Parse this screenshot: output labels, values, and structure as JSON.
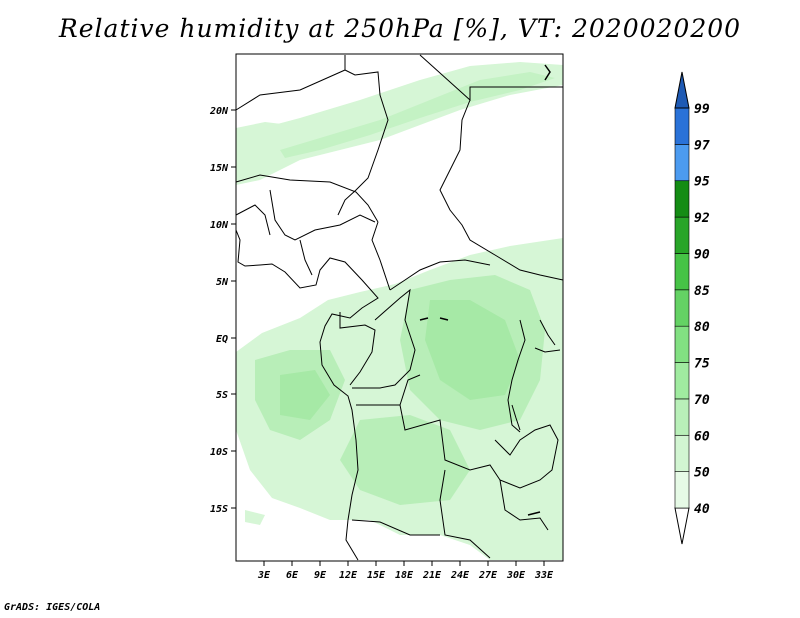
{
  "title": "Relative humidity at 250hPa [%], VT: 2020020200",
  "footer": "GrADS: IGES/COLA",
  "map": {
    "lon_range": [
      0,
      36
    ],
    "lat_range": [
      -20,
      25
    ],
    "lon_ticks": [
      "3E",
      "6E",
      "9E",
      "12E",
      "15E",
      "18E",
      "21E",
      "24E",
      "27E",
      "30E",
      "33E"
    ],
    "lat_ticks": [
      "20N",
      "15N",
      "10N",
      "5N",
      "EQ",
      "5S",
      "10S",
      "15S"
    ]
  },
  "colorbar": {
    "levels": [
      "40",
      "50",
      "60",
      "70",
      "75",
      "80",
      "85",
      "90",
      "92",
      "95",
      "97",
      "99"
    ],
    "colors": [
      "#ffffff",
      "#e6fae6",
      "#d2f5d2",
      "#b9f0b9",
      "#a0eba0",
      "#82e082",
      "#64d264",
      "#46c346",
      "#28a528",
      "#148c14",
      "#4c9bf0",
      "#2a72d8",
      "#1e5ab4"
    ]
  }
}
